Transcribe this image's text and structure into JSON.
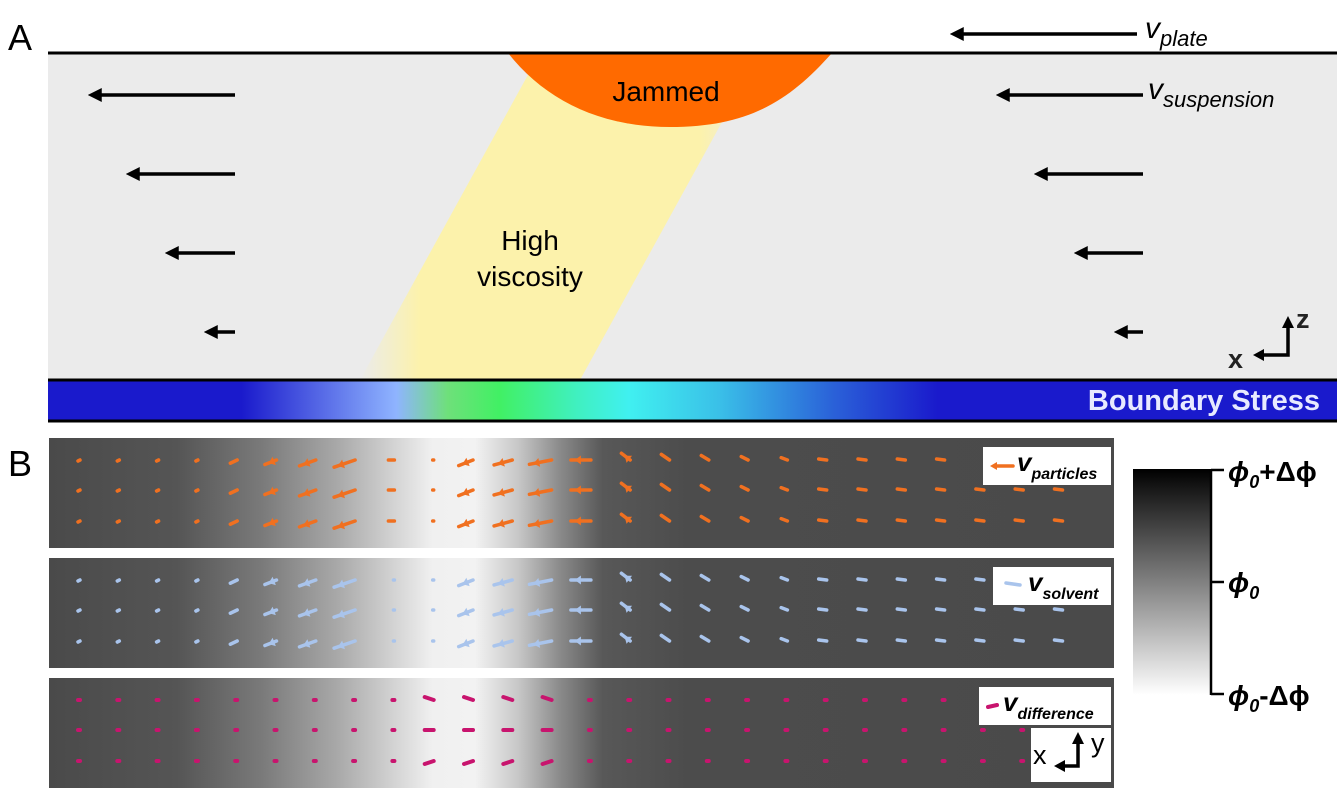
{
  "panel_a": {
    "letter": "A",
    "plate_velocity": {
      "symbol": "v",
      "subscript": "plate"
    },
    "suspension_velocity": {
      "symbol": "v",
      "subscript": "suspension"
    },
    "jammed_label": "Jammed",
    "high_viscosity_label_line1": "High",
    "high_viscosity_label_line2": "viscosity",
    "boundary_stress_label": "Boundary Stress",
    "axes": {
      "x": "x",
      "z": "z"
    },
    "colors": {
      "jammed": "#ff6a00",
      "high_viscosity": "#fff5a8",
      "suspension_bg": "#ebebeb",
      "stress_base": "#1a1acc"
    }
  },
  "panel_b": {
    "letter": "B",
    "fields": [
      {
        "symbol": "v",
        "subscript": "particles",
        "color": "#f07020"
      },
      {
        "symbol": "v",
        "subscript": "solvent",
        "color": "#a9c4ec"
      },
      {
        "symbol": "v",
        "subscript": "difference",
        "color": "#c8146e"
      }
    ],
    "axes": {
      "x": "x",
      "y": "y"
    },
    "colorbar": {
      "top_label": "ϕ0+Δϕ",
      "mid_label": "ϕ0",
      "bottom_label": "ϕ0-Δϕ",
      "top": {
        "base": "ϕ",
        "sub": "0",
        "rest": "+Δϕ"
      },
      "mid": {
        "base": "ϕ",
        "sub": "0",
        "rest": ""
      },
      "bottom": {
        "base": "ϕ",
        "sub": "0",
        "rest": "-Δϕ"
      }
    }
  }
}
